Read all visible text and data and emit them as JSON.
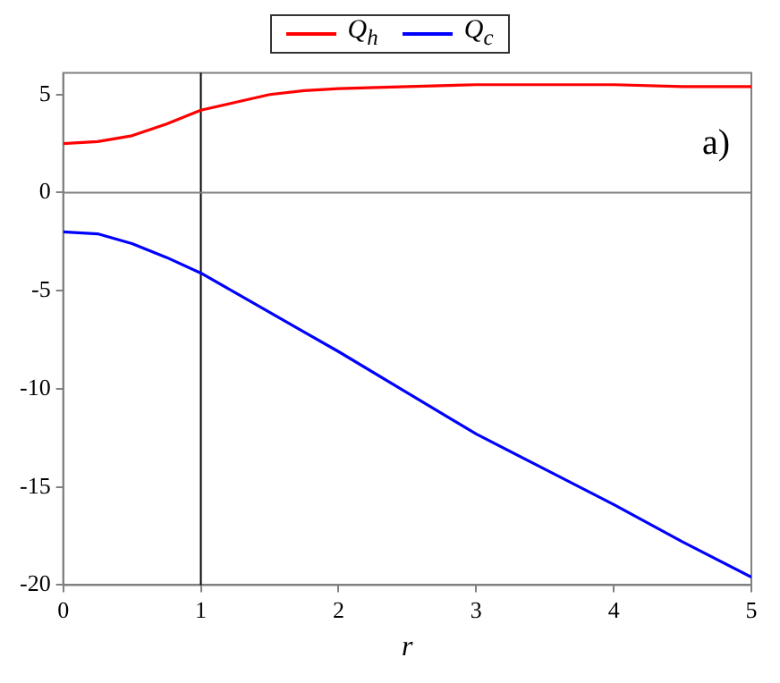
{
  "chart_data": {
    "type": "line",
    "xlabel": "r",
    "x": [
      0,
      0.25,
      0.5,
      0.75,
      1,
      1.25,
      1.5,
      1.75,
      2,
      2.5,
      3,
      3.5,
      4,
      4.5,
      5
    ],
    "series": [
      {
        "name": "Q$_{h}$",
        "color": "#ff0000",
        "values": [
          2.5,
          2.6,
          2.9,
          3.5,
          4.2,
          4.6,
          5.0,
          5.2,
          5.3,
          5.4,
          5.5,
          5.5,
          5.5,
          5.4,
          5.4
        ]
      },
      {
        "name": "Q$_{c}$",
        "color": "#0000ff",
        "values": [
          -2.0,
          -2.1,
          -2.6,
          -3.3,
          -4.1,
          -5.1,
          -6.1,
          -7.1,
          -8.1,
          -10.2,
          -12.3,
          -14.1,
          -15.9,
          -17.8,
          -19.6
        ]
      }
    ],
    "xlim": [
      0,
      5
    ],
    "xticks": [
      0,
      1,
      2,
      3,
      4,
      5
    ],
    "ylim": [
      -20,
      6.1
    ],
    "yticks": [
      -20,
      -15,
      -10,
      -5,
      0,
      5
    ],
    "ref_lines": [
      {
        "axis": "x",
        "value": 1,
        "color": "#000000"
      },
      {
        "axis": "y",
        "value": 0,
        "color": "#808080"
      }
    ],
    "annotations": [
      "a)"
    ],
    "legend": "top",
    "grid": false,
    "marker": "none",
    "line_style": "solid"
  }
}
